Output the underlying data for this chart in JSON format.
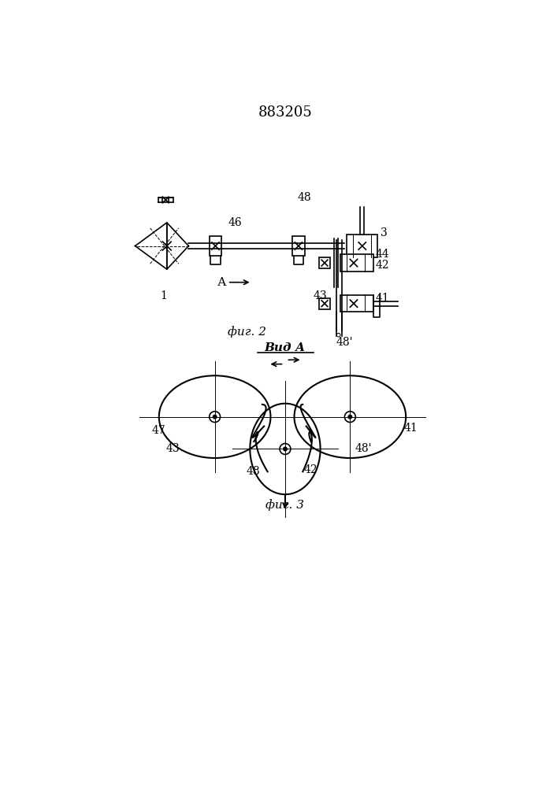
{
  "title": "883205",
  "title_fontsize": 13,
  "bg_color": "#ffffff",
  "line_color": "#000000",
  "fig2_caption": "фиг. 2",
  "fig3_caption": "фиг. 3",
  "vid_a_label": "Вид А",
  "arrow_a_label": "А"
}
